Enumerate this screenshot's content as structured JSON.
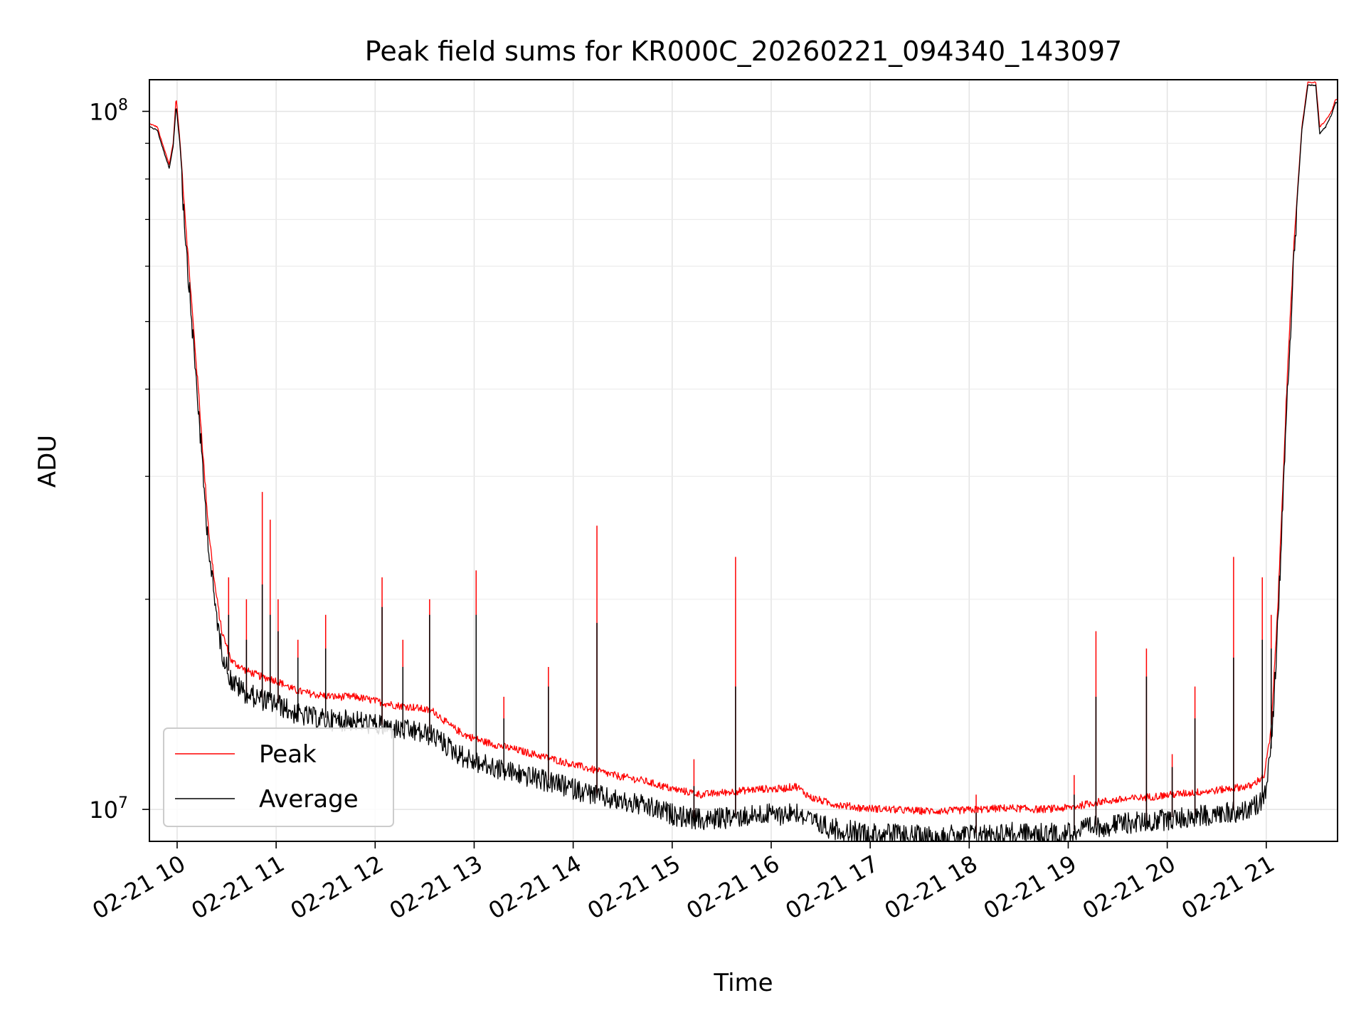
{
  "chart_data": {
    "type": "line",
    "title": "Peak field sums for KR000C_20260221_094340_143097",
    "xlabel": "Time",
    "ylabel": "ADU",
    "y_scale": "log",
    "xlim_hours": [
      9.72,
      21.72
    ],
    "ylim": [
      9000000,
      111000000
    ],
    "grid": true,
    "legend_position": "lower-left",
    "x_ticks": [
      {
        "hour": 10,
        "label": "02-21 10"
      },
      {
        "hour": 11,
        "label": "02-21 11"
      },
      {
        "hour": 12,
        "label": "02-21 12"
      },
      {
        "hour": 13,
        "label": "02-21 13"
      },
      {
        "hour": 14,
        "label": "02-21 14"
      },
      {
        "hour": 15,
        "label": "02-21 15"
      },
      {
        "hour": 16,
        "label": "02-21 16"
      },
      {
        "hour": 17,
        "label": "02-21 17"
      },
      {
        "hour": 18,
        "label": "02-21 18"
      },
      {
        "hour": 19,
        "label": "02-21 19"
      },
      {
        "hour": 20,
        "label": "02-21 20"
      },
      {
        "hour": 21,
        "label": "02-21 21"
      }
    ],
    "y_major_ticks": [
      {
        "value": 10000000,
        "base": "10",
        "exp": "7"
      },
      {
        "value": 100000000,
        "base": "10",
        "exp": "8"
      }
    ],
    "y_minor_ticks": [
      20000000,
      30000000,
      40000000,
      50000000,
      60000000,
      70000000,
      80000000,
      90000000
    ],
    "series": [
      {
        "name": "Peak",
        "color": "#ff0000",
        "points": [
          [
            9.72,
            96000000
          ],
          [
            9.8,
            95000000
          ],
          [
            9.85,
            90000000
          ],
          [
            9.92,
            84000000
          ],
          [
            9.96,
            90000000
          ],
          [
            9.99,
            105000000
          ],
          [
            10.03,
            90000000
          ],
          [
            10.1,
            65000000
          ],
          [
            10.17,
            48000000
          ],
          [
            10.22,
            39000000
          ],
          [
            10.27,
            31000000
          ],
          [
            10.32,
            25000000
          ],
          [
            10.38,
            21000000
          ],
          [
            10.45,
            18000000
          ],
          [
            10.55,
            16300000
          ],
          [
            10.7,
            15800000
          ],
          [
            10.85,
            15500000
          ],
          [
            11.0,
            15300000
          ],
          [
            11.2,
            14800000
          ],
          [
            11.4,
            14600000
          ],
          [
            11.6,
            14500000
          ],
          [
            11.8,
            14500000
          ],
          [
            12.0,
            14300000
          ],
          [
            12.2,
            14100000
          ],
          [
            12.4,
            14000000
          ],
          [
            12.6,
            13800000
          ],
          [
            12.75,
            13200000
          ],
          [
            12.9,
            12800000
          ],
          [
            13.1,
            12500000
          ],
          [
            13.3,
            12300000
          ],
          [
            13.5,
            12100000
          ],
          [
            13.8,
            11800000
          ],
          [
            14.1,
            11500000
          ],
          [
            14.4,
            11200000
          ],
          [
            14.7,
            11000000
          ],
          [
            15.0,
            10700000
          ],
          [
            15.3,
            10500000
          ],
          [
            15.6,
            10600000
          ],
          [
            15.9,
            10700000
          ],
          [
            16.1,
            10700000
          ],
          [
            16.25,
            10800000
          ],
          [
            16.4,
            10400000
          ],
          [
            16.6,
            10200000
          ],
          [
            16.9,
            10050000
          ],
          [
            17.2,
            10000000
          ],
          [
            17.5,
            9950000
          ],
          [
            17.8,
            9950000
          ],
          [
            18.1,
            10000000
          ],
          [
            18.4,
            10050000
          ],
          [
            18.7,
            10000000
          ],
          [
            19.0,
            10050000
          ],
          [
            19.3,
            10250000
          ],
          [
            19.6,
            10350000
          ],
          [
            19.9,
            10450000
          ],
          [
            20.2,
            10550000
          ],
          [
            20.5,
            10650000
          ],
          [
            20.7,
            10750000
          ],
          [
            20.85,
            10800000
          ],
          [
            20.98,
            11200000
          ],
          [
            21.05,
            13000000
          ],
          [
            21.12,
            20000000
          ],
          [
            21.2,
            38000000
          ],
          [
            21.28,
            65000000
          ],
          [
            21.36,
            95000000
          ],
          [
            21.42,
            110000000
          ],
          [
            21.5,
            110000000
          ],
          [
            21.54,
            95000000
          ],
          [
            21.6,
            97000000
          ],
          [
            21.66,
            100000000
          ],
          [
            21.7,
            104000000
          ],
          [
            21.72,
            104000000
          ]
        ]
      },
      {
        "name": "Average",
        "color": "#000000",
        "points": [
          [
            9.72,
            95000000
          ],
          [
            9.8,
            94000000
          ],
          [
            9.85,
            89000000
          ],
          [
            9.92,
            83000000
          ],
          [
            9.96,
            89000000
          ],
          [
            9.99,
            102000000
          ],
          [
            10.03,
            89000000
          ],
          [
            10.1,
            64000000
          ],
          [
            10.17,
            47000000
          ],
          [
            10.22,
            38000000
          ],
          [
            10.27,
            30000000
          ],
          [
            10.32,
            24500000
          ],
          [
            10.38,
            20500000
          ],
          [
            10.45,
            17500000
          ],
          [
            10.55,
            15800000
          ],
          [
            10.7,
            15200000
          ],
          [
            10.85,
            14900000
          ],
          [
            11.0,
            14700000
          ],
          [
            11.2,
            14200000
          ],
          [
            11.4,
            14000000
          ],
          [
            11.6,
            13900000
          ],
          [
            11.8,
            13900000
          ],
          [
            12.0,
            13700000
          ],
          [
            12.2,
            13500000
          ],
          [
            12.4,
            13400000
          ],
          [
            12.6,
            13200000
          ],
          [
            12.75,
            12700000
          ],
          [
            12.9,
            12300000
          ],
          [
            13.1,
            12000000
          ],
          [
            13.3,
            11800000
          ],
          [
            13.5,
            11600000
          ],
          [
            13.8,
            11300000
          ],
          [
            14.1,
            11000000
          ],
          [
            14.4,
            10700000
          ],
          [
            14.7,
            10500000
          ],
          [
            15.0,
            10200000
          ],
          [
            15.3,
            10000000
          ],
          [
            15.6,
            10100000
          ],
          [
            15.9,
            10200000
          ],
          [
            16.1,
            10200000
          ],
          [
            16.25,
            10300000
          ],
          [
            16.4,
            9950000
          ],
          [
            16.6,
            9750000
          ],
          [
            16.9,
            9600000
          ],
          [
            17.2,
            9550000
          ],
          [
            17.5,
            9500000
          ],
          [
            17.8,
            9500000
          ],
          [
            18.1,
            9550000
          ],
          [
            18.4,
            9600000
          ],
          [
            18.7,
            9550000
          ],
          [
            19.0,
            9600000
          ],
          [
            19.3,
            9800000
          ],
          [
            19.6,
            9900000
          ],
          [
            19.9,
            10000000
          ],
          [
            20.2,
            10100000
          ],
          [
            20.5,
            10200000
          ],
          [
            20.7,
            10300000
          ],
          [
            20.85,
            10350000
          ],
          [
            20.98,
            10800000
          ],
          [
            21.05,
            12600000
          ],
          [
            21.12,
            19500000
          ],
          [
            21.2,
            37000000
          ],
          [
            21.28,
            64000000
          ],
          [
            21.36,
            94000000
          ],
          [
            21.42,
            109000000
          ],
          [
            21.5,
            109000000
          ],
          [
            21.54,
            93000000
          ],
          [
            21.6,
            95000000
          ],
          [
            21.66,
            99000000
          ],
          [
            21.7,
            103000000
          ],
          [
            21.72,
            103000000
          ]
        ]
      }
    ],
    "spikes": [
      {
        "hour": 10.52,
        "peak": 21500000,
        "average": 19000000
      },
      {
        "hour": 10.7,
        "peak": 20000000,
        "average": 17500000
      },
      {
        "hour": 10.86,
        "peak": 28500000,
        "average": 21000000
      },
      {
        "hour": 10.94,
        "peak": 26000000,
        "average": 19000000
      },
      {
        "hour": 11.02,
        "peak": 20000000,
        "average": 18000000
      },
      {
        "hour": 11.22,
        "peak": 17500000,
        "average": 16500000
      },
      {
        "hour": 11.5,
        "peak": 19000000,
        "average": 17000000
      },
      {
        "hour": 12.07,
        "peak": 21500000,
        "average": 19500000
      },
      {
        "hour": 12.28,
        "peak": 17500000,
        "average": 16000000
      },
      {
        "hour": 12.55,
        "peak": 20000000,
        "average": 19000000
      },
      {
        "hour": 13.02,
        "peak": 22000000,
        "average": 19000000
      },
      {
        "hour": 13.3,
        "peak": 14500000,
        "average": 13500000
      },
      {
        "hour": 13.75,
        "peak": 16000000,
        "average": 15000000
      },
      {
        "hour": 14.24,
        "peak": 25500000,
        "average": 18500000
      },
      {
        "hour": 15.22,
        "peak": 11800000,
        "average": 10800000
      },
      {
        "hour": 15.64,
        "peak": 23000000,
        "average": 15000000
      },
      {
        "hour": 18.07,
        "peak": 10500000,
        "average": 9900000
      },
      {
        "hour": 19.06,
        "peak": 11200000,
        "average": 10500000
      },
      {
        "hour": 19.28,
        "peak": 18000000,
        "average": 14500000
      },
      {
        "hour": 19.79,
        "peak": 17000000,
        "average": 15500000
      },
      {
        "hour": 20.05,
        "peak": 12000000,
        "average": 11500000
      },
      {
        "hour": 20.28,
        "peak": 15000000,
        "average": 13500000
      },
      {
        "hour": 20.67,
        "peak": 23000000,
        "average": 16500000
      },
      {
        "hour": 20.96,
        "peak": 21500000,
        "average": 17500000
      },
      {
        "hour": 21.05,
        "peak": 19000000,
        "average": 17000000
      }
    ]
  }
}
